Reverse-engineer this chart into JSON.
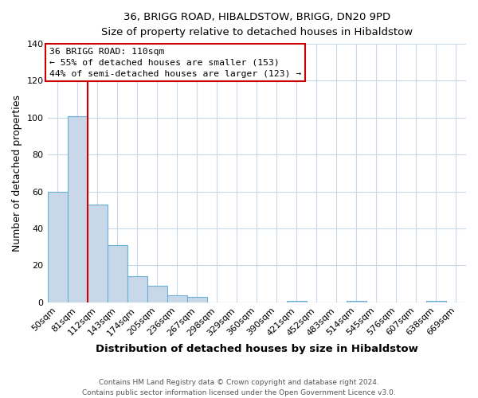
{
  "title": "36, BRIGG ROAD, HIBALDSTOW, BRIGG, DN20 9PD",
  "subtitle": "Size of property relative to detached houses in Hibaldstow",
  "xlabel": "Distribution of detached houses by size in Hibaldstow",
  "ylabel": "Number of detached properties",
  "categories": [
    "50sqm",
    "81sqm",
    "112sqm",
    "143sqm",
    "174sqm",
    "205sqm",
    "236sqm",
    "267sqm",
    "298sqm",
    "329sqm",
    "360sqm",
    "390sqm",
    "421sqm",
    "452sqm",
    "483sqm",
    "514sqm",
    "545sqm",
    "576sqm",
    "607sqm",
    "638sqm",
    "669sqm"
  ],
  "values": [
    60,
    101,
    53,
    31,
    14,
    9,
    4,
    3,
    0,
    0,
    0,
    0,
    1,
    0,
    0,
    1,
    0,
    0,
    0,
    1,
    0
  ],
  "bar_color": "#c8d8e8",
  "bar_edge_color": "#6aafd6",
  "highlight_index": 2,
  "highlight_line_color": "#cc0000",
  "ylim": [
    0,
    140
  ],
  "yticks": [
    0,
    20,
    40,
    60,
    80,
    100,
    120,
    140
  ],
  "annotation_title": "36 BRIGG ROAD: 110sqm",
  "annotation_line1": "← 55% of detached houses are smaller (153)",
  "annotation_line2": "44% of semi-detached houses are larger (123) →",
  "annotation_box_color": "#ffffff",
  "annotation_box_edge": "#cc0000",
  "footer_line1": "Contains HM Land Registry data © Crown copyright and database right 2024.",
  "footer_line2": "Contains public sector information licensed under the Open Government Licence v3.0.",
  "background_color": "#ffffff",
  "grid_color": "#c8d8e8"
}
